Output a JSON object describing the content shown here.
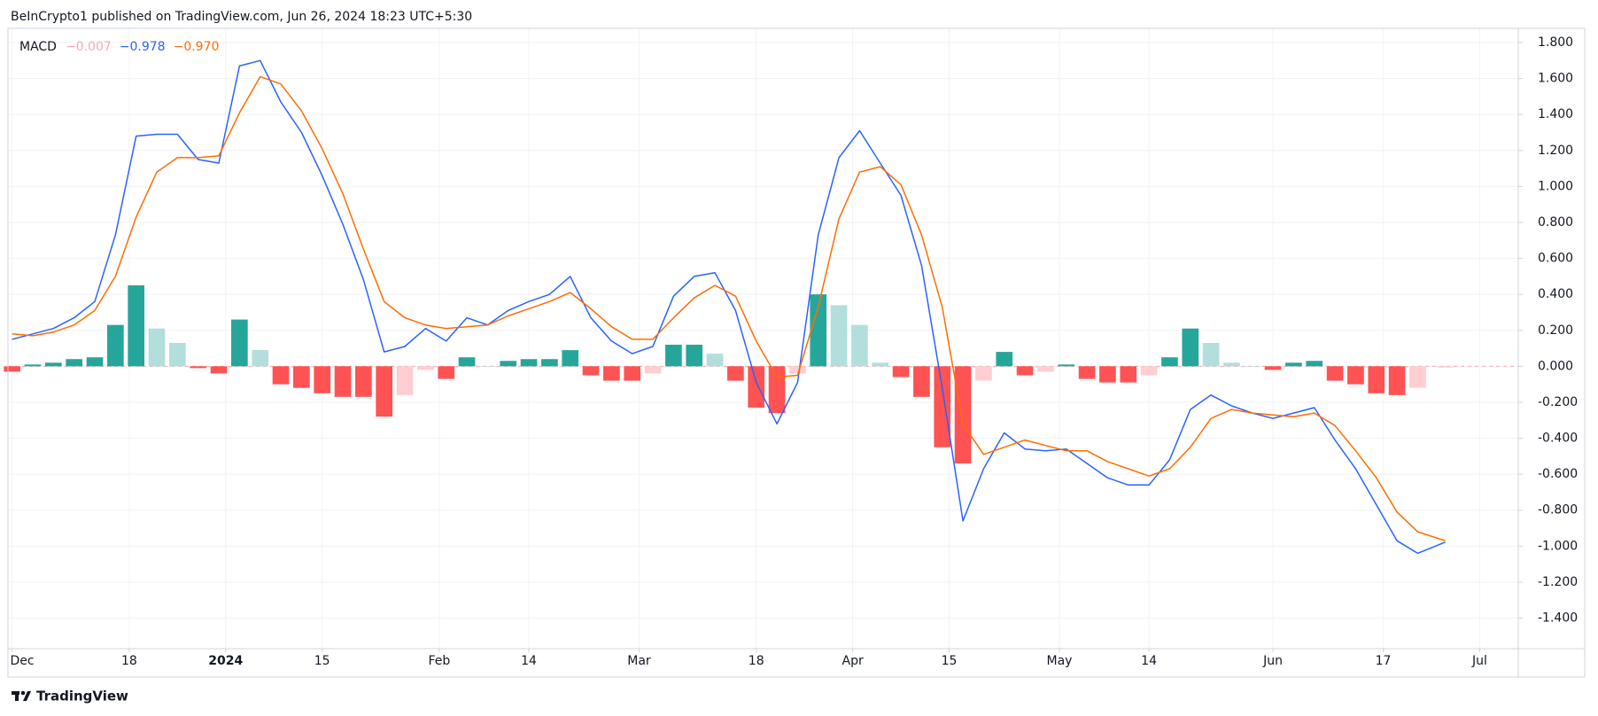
{
  "header": "BeInCrypto1 published on TradingView.com, Jun 26, 2024 18:23 UTC+5:30",
  "footer": "TradingView",
  "chart_data": {
    "type": "macd",
    "legend": {
      "title": "MACD",
      "entries": [
        {
          "label": "−0.007",
          "color": "#f7a9b3"
        },
        {
          "label": "−0.978",
          "color": "#2962ff"
        },
        {
          "label": "−0.970",
          "color": "#ff6d00"
        }
      ]
    },
    "x": [
      0,
      3,
      6,
      9,
      12,
      15,
      18,
      21,
      24,
      27,
      30,
      33,
      36,
      39,
      42,
      45,
      48,
      51,
      54,
      57,
      60,
      63,
      66,
      69,
      72,
      75,
      78,
      81,
      84,
      87,
      90,
      93,
      96,
      99,
      102,
      105,
      108,
      111,
      114,
      117,
      120,
      123,
      126,
      129,
      132,
      135,
      138,
      141,
      144,
      147,
      150,
      153,
      156,
      159,
      162,
      165,
      168,
      171,
      174,
      177,
      180,
      183,
      186,
      189,
      192,
      195,
      198,
      201,
      204,
      208
    ],
    "histogram": {
      "colors": {
        "up_rising": "#26a69a",
        "up_falling": "#b2dfdb",
        "down_falling": "#ff5252",
        "down_rising": "#ffcdd2"
      },
      "values": [
        -0.03,
        0.01,
        0.02,
        0.04,
        0.05,
        0.23,
        0.45,
        0.21,
        0.13,
        -0.01,
        -0.04,
        0.26,
        0.09,
        -0.1,
        -0.12,
        -0.15,
        -0.17,
        -0.17,
        -0.28,
        -0.16,
        -0.02,
        -0.07,
        0.05,
        0.0,
        0.03,
        0.04,
        0.04,
        0.09,
        -0.05,
        -0.08,
        -0.08,
        -0.04,
        0.12,
        0.12,
        0.07,
        -0.08,
        -0.23,
        -0.26,
        -0.04,
        0.4,
        0.34,
        0.23,
        0.02,
        -0.06,
        -0.17,
        -0.45,
        -0.54,
        -0.08,
        0.08,
        -0.05,
        -0.03,
        0.01,
        -0.07,
        -0.09,
        -0.09,
        -0.05,
        0.05,
        0.21,
        0.13,
        0.02,
        0.0,
        -0.02,
        0.02,
        0.03,
        -0.08,
        -0.1,
        -0.15,
        -0.16,
        -0.12,
        -0.007
      ]
    },
    "series": [
      {
        "name": "MACD",
        "color": "#2962ff",
        "values": [
          0.15,
          0.18,
          0.21,
          0.27,
          0.36,
          0.73,
          1.28,
          1.29,
          1.29,
          1.15,
          1.13,
          1.67,
          1.7,
          1.47,
          1.3,
          1.06,
          0.79,
          0.48,
          0.08,
          0.11,
          0.21,
          0.14,
          0.27,
          0.23,
          0.31,
          0.36,
          0.4,
          0.5,
          0.27,
          0.14,
          0.07,
          0.11,
          0.39,
          0.5,
          0.52,
          0.31,
          -0.09,
          -0.32,
          -0.09,
          0.73,
          1.16,
          1.31,
          1.13,
          0.95,
          0.56,
          -0.12,
          -0.86,
          -0.57,
          -0.37,
          -0.46,
          -0.47,
          -0.46,
          -0.54,
          -0.62,
          -0.66,
          -0.66,
          -0.52,
          -0.24,
          -0.16,
          -0.22,
          -0.26,
          -0.29,
          -0.26,
          -0.23,
          -0.41,
          -0.57,
          -0.77,
          -0.97,
          -1.04,
          -0.978
        ]
      },
      {
        "name": "Signal",
        "color": "#ff6d00",
        "values": [
          0.18,
          0.17,
          0.19,
          0.23,
          0.31,
          0.5,
          0.83,
          1.08,
          1.16,
          1.16,
          1.17,
          1.41,
          1.61,
          1.57,
          1.42,
          1.21,
          0.96,
          0.65,
          0.36,
          0.27,
          0.23,
          0.21,
          0.22,
          0.23,
          0.28,
          0.32,
          0.36,
          0.41,
          0.32,
          0.22,
          0.15,
          0.15,
          0.27,
          0.38,
          0.45,
          0.39,
          0.14,
          -0.06,
          -0.05,
          0.33,
          0.82,
          1.08,
          1.11,
          1.01,
          0.73,
          0.33,
          -0.32,
          -0.49,
          -0.45,
          -0.41,
          -0.44,
          -0.47,
          -0.47,
          -0.53,
          -0.57,
          -0.61,
          -0.57,
          -0.45,
          -0.29,
          -0.24,
          -0.26,
          -0.27,
          -0.28,
          -0.26,
          -0.33,
          -0.47,
          -0.62,
          -0.81,
          -0.92,
          -0.97
        ]
      }
    ],
    "xlim": [
      -0.6,
      218.6
    ],
    "xticks": [
      {
        "value": 0,
        "label": "Dec"
      },
      {
        "value": 17,
        "label": "18"
      },
      {
        "value": 31,
        "label": "2024",
        "bold": true
      },
      {
        "value": 45,
        "label": "15"
      },
      {
        "value": 62,
        "label": "Feb"
      },
      {
        "value": 75,
        "label": "14"
      },
      {
        "value": 91,
        "label": "Mar"
      },
      {
        "value": 108,
        "label": "18"
      },
      {
        "value": 122,
        "label": "Apr"
      },
      {
        "value": 136,
        "label": "15"
      },
      {
        "value": 152,
        "label": "May"
      },
      {
        "value": 165,
        "label": "14"
      },
      {
        "value": 183,
        "label": "Jun"
      },
      {
        "value": 199,
        "label": "17"
      },
      {
        "value": 213,
        "label": "Jul"
      }
    ],
    "ylim": [
      -1.57,
      1.879
    ],
    "yticks": [
      {
        "value": 1.8,
        "label": "1.800"
      },
      {
        "value": 1.6,
        "label": "1.600"
      },
      {
        "value": 1.4,
        "label": "1.400"
      },
      {
        "value": 1.2,
        "label": "1.200"
      },
      {
        "value": 1.0,
        "label": "1.000"
      },
      {
        "value": 0.8,
        "label": "0.800"
      },
      {
        "value": 0.6,
        "label": "0.600"
      },
      {
        "value": 0.4,
        "label": "0.400"
      },
      {
        "value": 0.2,
        "label": "0.200"
      },
      {
        "value": 0,
        "label": "0.000"
      },
      {
        "value": -0.2,
        "label": "-0.200"
      },
      {
        "value": -0.4,
        "label": "-0.400"
      },
      {
        "value": -0.6,
        "label": "-0.600"
      },
      {
        "value": -0.8,
        "label": "-0.800"
      },
      {
        "value": -1.0,
        "label": "-1.000"
      },
      {
        "value": -1.2,
        "label": "-1.200"
      },
      {
        "value": -1.4,
        "label": "-1.400"
      }
    ],
    "grid": true,
    "zero_line_color": "#f7a9b3"
  }
}
